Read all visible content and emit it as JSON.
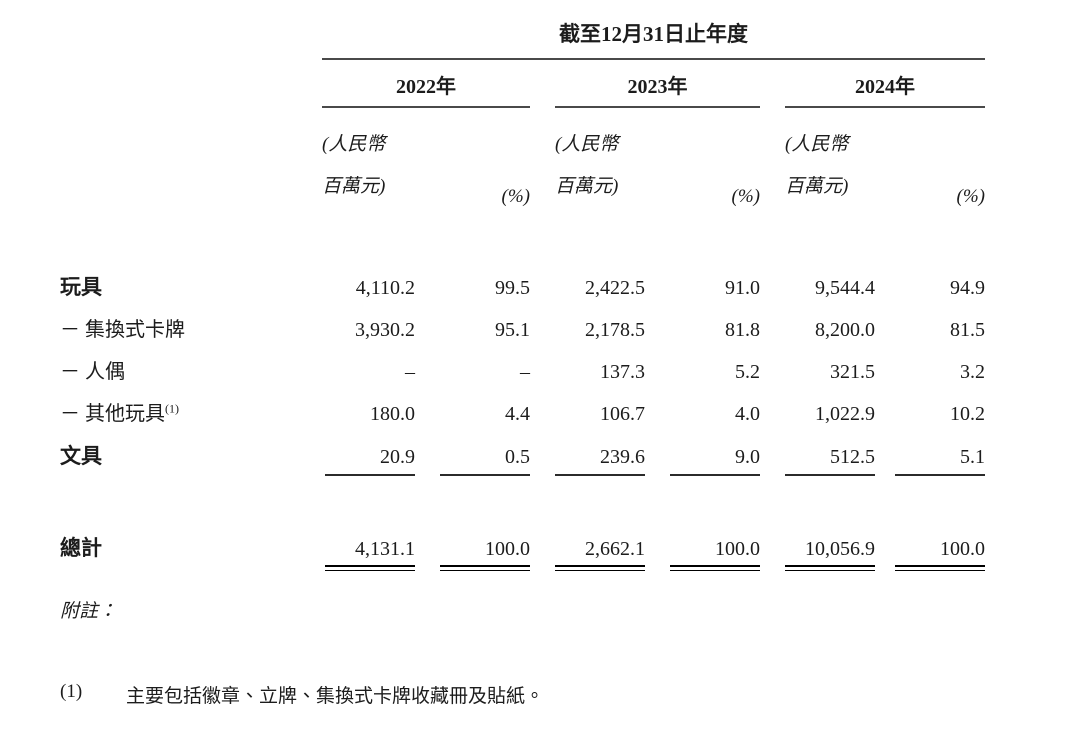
{
  "table": {
    "title": "截至12月31日止年度",
    "years": [
      "2022年",
      "2023年",
      "2024年"
    ],
    "unit_header": {
      "currency_line1": "(人民幣",
      "currency_line2": "百萬元)",
      "percent": "(%)"
    },
    "rows": [
      {
        "label": "玩具",
        "values": [
          "4,110.2",
          "99.5",
          "2,422.5",
          "91.0",
          "9,544.4",
          "94.9"
        ]
      },
      {
        "label": "－ 集換式卡牌",
        "values": [
          "3,930.2",
          "95.1",
          "2,178.5",
          "81.8",
          "8,200.0",
          "81.5"
        ]
      },
      {
        "label": "－ 人偶",
        "values": [
          "–",
          "–",
          "137.3",
          "5.2",
          "321.5",
          "3.2"
        ]
      },
      {
        "label": "－ 其他玩具",
        "sup": "(1)",
        "values": [
          "180.0",
          "4.4",
          "106.7",
          "4.0",
          "1,022.9",
          "10.2"
        ]
      },
      {
        "label": "文具",
        "values": [
          "20.9",
          "0.5",
          "239.6",
          "9.0",
          "512.5",
          "5.1"
        ]
      }
    ],
    "total": {
      "label": "總計",
      "values": [
        "4,131.1",
        "100.0",
        "2,662.1",
        "100.0",
        "10,056.9",
        "100.0"
      ]
    }
  },
  "notes": {
    "heading": "附註：",
    "items": [
      {
        "marker": "(1)",
        "text": "主要包括徽章、立牌、集換式卡牌收藏冊及貼紙。"
      }
    ]
  },
  "colors": {
    "text": "#1c1c1c",
    "rule": "#4a4a4a",
    "background": "#ffffff"
  }
}
